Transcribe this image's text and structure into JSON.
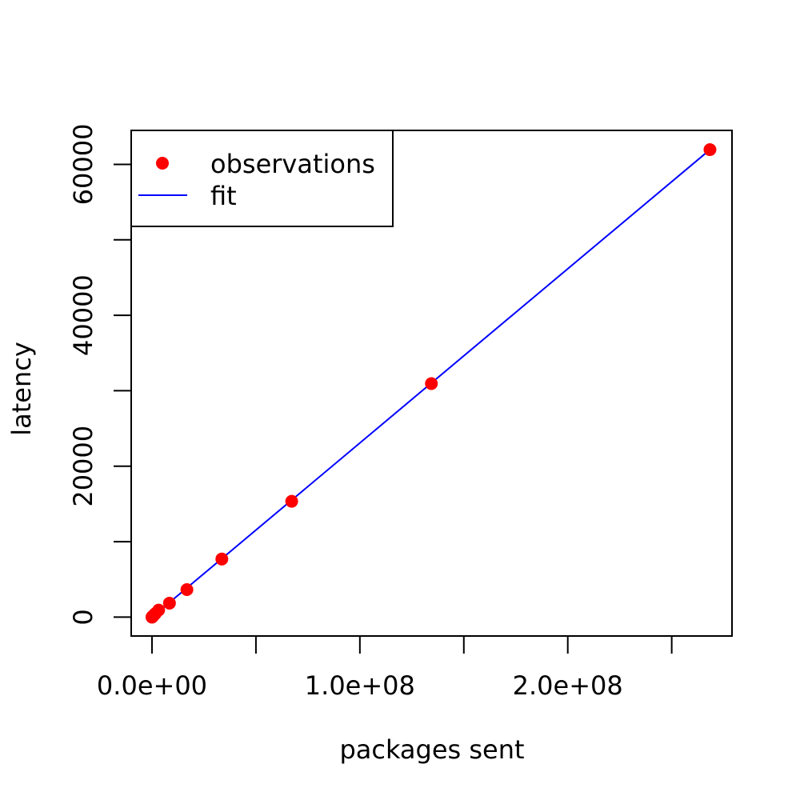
{
  "chart_data": {
    "type": "scatter",
    "title": "",
    "xlabel": "packages sent",
    "ylabel": "latency",
    "xlim": [
      -10000000,
      279000000
    ],
    "ylim": [
      -2500,
      64500
    ],
    "x_ticks": [
      0,
      50000000,
      100000000,
      150000000,
      200000000,
      250000000
    ],
    "x_tick_labels": [
      "0.0e+00",
      "",
      "1.0e+08",
      "",
      "2.0e+08",
      ""
    ],
    "y_ticks": [
      0,
      10000,
      20000,
      30000,
      40000,
      50000,
      60000
    ],
    "y_tick_labels": [
      "0",
      "",
      "20000",
      "",
      "40000",
      "",
      "60000"
    ],
    "series": [
      {
        "name": "observations",
        "kind": "points",
        "color": "#ff0000",
        "x": [
          0,
          100000,
          200000,
          400000,
          800000,
          1600000,
          3200000,
          8400000,
          16800000,
          33600000,
          67200000,
          134400000,
          268400000
        ],
        "y": [
          0,
          30,
          60,
          120,
          230,
          470,
          930,
          1850,
          3650,
          7700,
          15350,
          30950,
          61950
        ]
      },
      {
        "name": "fit",
        "kind": "line",
        "color": "#0000ff",
        "x": [
          0,
          268400000
        ],
        "y": [
          0,
          61950
        ]
      }
    ],
    "legend": {
      "position": "top-left",
      "entries": [
        "observations",
        "fit"
      ]
    },
    "grid": false
  }
}
